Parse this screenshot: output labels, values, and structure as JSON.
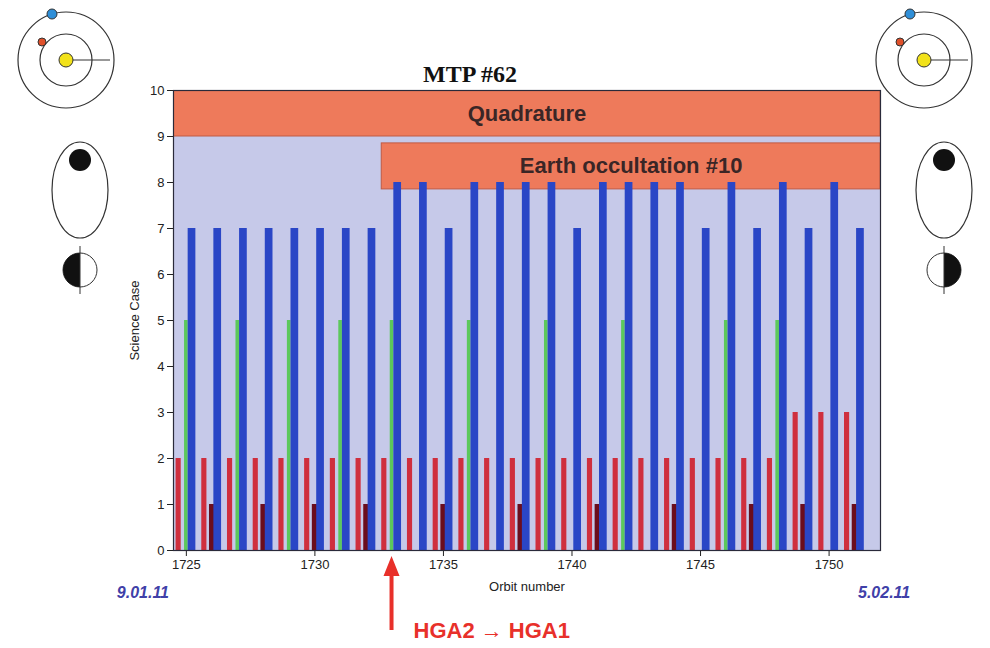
{
  "chart_data": {
    "type": "bar",
    "title": "MTP #62",
    "x_label": "Orbit number",
    "y_label": "Science Case",
    "x": [
      1725,
      1726,
      1727,
      1728,
      1729,
      1730,
      1731,
      1732,
      1733,
      1734,
      1735,
      1736,
      1737,
      1738,
      1739,
      1740,
      1741,
      1742,
      1743,
      1744,
      1745,
      1746,
      1747,
      1748,
      1749,
      1750,
      1751
    ],
    "series": [
      {
        "color": "#cf2f3e",
        "values": [
          2,
          2,
          2,
          2,
          2,
          2,
          2,
          2,
          2,
          2,
          2,
          2,
          2,
          2,
          2,
          2,
          2,
          2,
          2,
          2,
          2,
          2,
          2,
          2,
          3,
          3,
          3
        ]
      },
      {
        "color": "#5cc85c",
        "values": [
          5,
          null,
          5,
          null,
          5,
          null,
          5,
          null,
          5,
          null,
          null,
          5,
          null,
          null,
          5,
          null,
          null,
          5,
          null,
          null,
          null,
          5,
          null,
          5,
          null,
          null,
          null
        ]
      },
      {
        "color": "#6b0d1d",
        "values": [
          null,
          1,
          null,
          1,
          null,
          1,
          null,
          1,
          null,
          null,
          1,
          null,
          null,
          1,
          null,
          null,
          1,
          null,
          null,
          1,
          null,
          null,
          1,
          null,
          1,
          null,
          1
        ]
      },
      {
        "color": "#2a46c6",
        "values": [
          7,
          7,
          7,
          7,
          7,
          7,
          7,
          7,
          8,
          8,
          7,
          8,
          8,
          8,
          8,
          7,
          8,
          8,
          8,
          8,
          7,
          8,
          7,
          8,
          7,
          8,
          7
        ]
      }
    ],
    "xlim": [
      1724.5,
      1752
    ],
    "xticks": [
      1725,
      1730,
      1735,
      1740,
      1745,
      1750
    ],
    "ylim": [
      0,
      10
    ],
    "yticks": [
      0,
      1,
      2,
      3,
      4,
      5,
      6,
      7,
      8,
      9,
      10
    ],
    "bands": [
      {
        "label": "Quadrature",
        "color": "#ee7a5b",
        "x": [
          1724.5,
          1752
        ],
        "y": [
          9,
          10
        ]
      },
      {
        "label": "Earth occultation #10",
        "color": "#ee7a5b",
        "x": [
          1732.6,
          1752
        ],
        "y": [
          7.85,
          8.85
        ]
      }
    ],
    "annotations": [
      {
        "text": "HGA2 → HGA1",
        "x": 1733,
        "color": "#e8302a"
      }
    ],
    "x_end_labels": [
      {
        "text": "9.01.11",
        "x": 1724.5,
        "color": "#4040a8"
      },
      {
        "text": "5.02.11",
        "x": 1752,
        "color": "#4040a8"
      }
    ]
  }
}
